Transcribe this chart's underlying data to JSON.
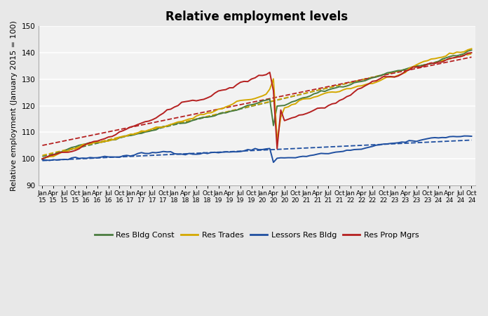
{
  "title": "Relative employment levels",
  "ylabel": "Relative employment (January 2015 = 100)",
  "ylim": [
    90,
    150
  ],
  "yticks": [
    90,
    100,
    110,
    120,
    130,
    140,
    150
  ],
  "background_color": "#e8e8e8",
  "plot_background": "#f2f2f2",
  "series": {
    "res_bldg_const": {
      "color": "#4a7c3f",
      "label": "Res Bldg Const",
      "lw": 1.4
    },
    "res_trades": {
      "color": "#d4a800",
      "label": "Res Trades",
      "lw": 1.4
    },
    "lessors_res_bldg": {
      "color": "#1f4fa0",
      "label": "Lessors Res Bldg",
      "lw": 1.4
    },
    "res_prop_mgrs": {
      "color": "#b52020",
      "label": "Res Prop Mgrs",
      "lw": 1.4
    }
  },
  "tick_label_fontsize": 6.5,
  "legend_fontsize": 8,
  "title_fontsize": 12,
  "n_months": 118,
  "covid_idx": 63,
  "seed": 42
}
